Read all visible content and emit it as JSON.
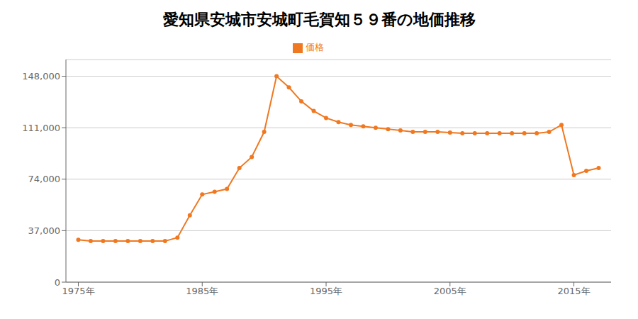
{
  "chart_data": {
    "type": "line",
    "title": "愛知県安城市安城町毛賀知５９番の地価推移",
    "x": [
      1975,
      1976,
      1977,
      1978,
      1979,
      1980,
      1981,
      1982,
      1983,
      1984,
      1985,
      1986,
      1987,
      1988,
      1989,
      1990,
      1991,
      1992,
      1993,
      1994,
      1995,
      1996,
      1997,
      1998,
      1999,
      2000,
      2001,
      2002,
      2003,
      2004,
      2005,
      2006,
      2007,
      2008,
      2009,
      2010,
      2011,
      2012,
      2013,
      2014,
      2015,
      2016,
      2017
    ],
    "series": [
      {
        "name": "価格",
        "color": "#F07820",
        "marker": "circle",
        "values": [
          30500,
          29500,
          29500,
          29500,
          29500,
          29500,
          29500,
          29500,
          32000,
          48000,
          63000,
          65000,
          67000,
          82000,
          90000,
          108000,
          148000,
          140000,
          130000,
          123000,
          118000,
          115000,
          113000,
          112000,
          111000,
          110000,
          109000,
          108000,
          108000,
          108000,
          107500,
          107000,
          107000,
          107000,
          107000,
          107000,
          107000,
          107000,
          108000,
          113000,
          77000,
          80000,
          82000
        ]
      }
    ],
    "xlim": [
      1974,
      2018
    ],
    "xticks": [
      {
        "value": 1975,
        "label": "1975年"
      },
      {
        "value": 1985,
        "label": "1985年"
      },
      {
        "value": 1995,
        "label": "1995年"
      },
      {
        "value": 2005,
        "label": "2005年"
      },
      {
        "value": 2015,
        "label": "2015年"
      }
    ],
    "ylim": [
      0,
      160000
    ],
    "yticks": [
      0,
      {
        "value": 37000,
        "label": "37,000"
      },
      {
        "value": 74000,
        "label": "74,000"
      },
      {
        "value": 111000,
        "label": "111,000"
      },
      {
        "value": 148000,
        "label": "148,000"
      }
    ],
    "grid": "y",
    "legend": "top"
  }
}
